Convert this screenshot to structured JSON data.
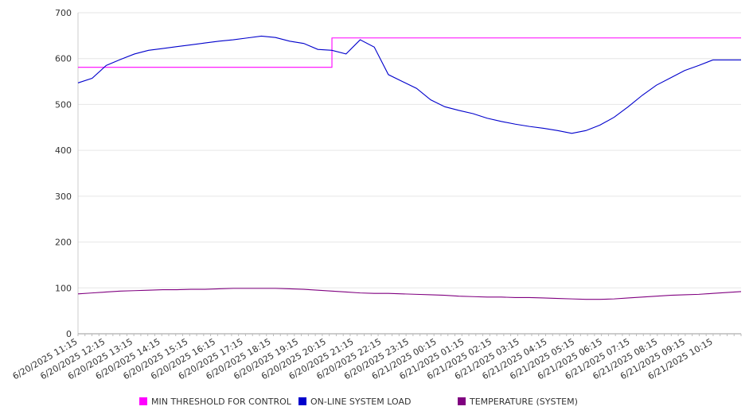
{
  "chart_data": {
    "type": "line",
    "title": "",
    "xlabel": "",
    "ylabel": "",
    "ylim": [
      0,
      700
    ],
    "yticks": [
      0,
      100,
      200,
      300,
      400,
      500,
      600,
      700
    ],
    "grid": true,
    "legend_position": "bottom",
    "x_tick_labels": [
      "6/20/2025 11:15",
      "6/20/2025 12:15",
      "6/20/2025 13:15",
      "6/20/2025 14:15",
      "6/20/2025 15:15",
      "6/20/2025 16:15",
      "6/20/2025 17:15",
      "6/20/2025 18:15",
      "6/20/2025 19:15",
      "6/20/2025 20:15",
      "6/20/2025 21:15",
      "6/20/2025 22:15",
      "6/20/2025 23:15",
      "6/21/2025 00:15",
      "6/21/2025 01:15",
      "6/21/2025 02:15",
      "6/21/2025 03:15",
      "6/21/2025 04:15",
      "6/21/2025 05:15",
      "6/21/2025 06:15",
      "6/21/2025 07:15",
      "6/21/2025 08:15",
      "6/21/2025 09:15",
      "6/21/2025 10:15"
    ],
    "x": [
      "11:15",
      "11:45",
      "12:15",
      "12:45",
      "13:15",
      "13:45",
      "14:15",
      "14:45",
      "15:15",
      "15:45",
      "16:15",
      "16:45",
      "17:15",
      "17:45",
      "18:15",
      "18:45",
      "19:15",
      "19:45",
      "20:15",
      "20:45",
      "21:15",
      "21:45",
      "22:15",
      "22:45",
      "23:15",
      "23:45",
      "00:15",
      "00:45",
      "01:15",
      "01:45",
      "02:15",
      "02:45",
      "03:15",
      "03:45",
      "04:15",
      "04:45",
      "05:15",
      "05:45",
      "06:15",
      "06:45",
      "07:15",
      "07:45",
      "08:15",
      "08:45",
      "09:15",
      "09:45",
      "10:15",
      "10:45"
    ],
    "series": [
      {
        "name": "MIN THRESHOLD FOR CONTROL",
        "color": "#ff00ff",
        "values": [
          581,
          581,
          581,
          581,
          581,
          581,
          581,
          581,
          581,
          581,
          581,
          581,
          581,
          581,
          581,
          581,
          581,
          581,
          645,
          645,
          645,
          645,
          645,
          645,
          645,
          645,
          645,
          645,
          645,
          645,
          645,
          645,
          645,
          645,
          645,
          645,
          645,
          645,
          645,
          645,
          645,
          645,
          645,
          645,
          645,
          645,
          645,
          645
        ]
      },
      {
        "name": "ON-LINE SYSTEM LOAD",
        "color": "#0000cc",
        "values": [
          547,
          557,
          585,
          598,
          610,
          618,
          622,
          626,
          630,
          634,
          638,
          641,
          645,
          649,
          646,
          638,
          633,
          620,
          618,
          610,
          641,
          625,
          565,
          550,
          535,
          510,
          495,
          487,
          480,
          470,
          463,
          457,
          452,
          448,
          443,
          437,
          443,
          455,
          472,
          495,
          520,
          542,
          558,
          574,
          585,
          597,
          597,
          597
        ]
      },
      {
        "name": "TEMPERATURE (SYSTEM)",
        "color": "#800080",
        "values": [
          87,
          89,
          91,
          93,
          94,
          95,
          96,
          96,
          97,
          97,
          98,
          99,
          99,
          99,
          99,
          98,
          97,
          95,
          93,
          91,
          89,
          88,
          88,
          87,
          86,
          85,
          84,
          82,
          81,
          80,
          80,
          79,
          79,
          78,
          77,
          76,
          75,
          75,
          76,
          78,
          80,
          82,
          84,
          85,
          86,
          88,
          90,
          92
        ]
      }
    ]
  }
}
